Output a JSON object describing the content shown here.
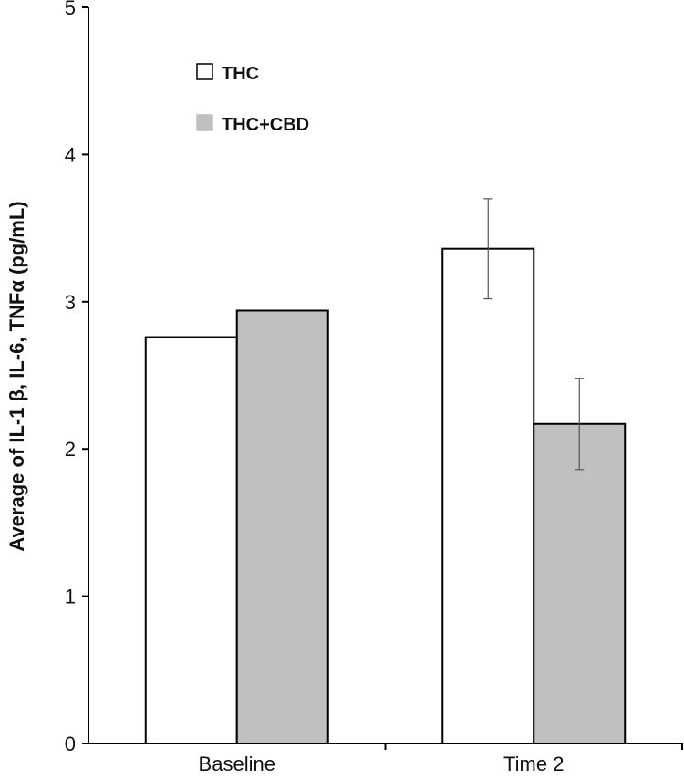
{
  "chart_data": {
    "type": "bar",
    "title": "",
    "xlabel": "",
    "ylabel": "Average of IL-1 β, IL-6, TNFα (pg/mL)",
    "categories": [
      "Baseline",
      "Time 2"
    ],
    "ylim": [
      0,
      5
    ],
    "yticks": [
      "0",
      "1",
      "2",
      "3",
      "4",
      "5"
    ],
    "grid": false,
    "legend_position": "top-left",
    "series": [
      {
        "name": "THC",
        "color": "#ffffff",
        "values": [
          2.76,
          3.36
        ],
        "errors": [
          null,
          0.34
        ]
      },
      {
        "name": "THC+CBD",
        "color": "#c0c0c0",
        "values": [
          2.94,
          2.17
        ],
        "errors": [
          null,
          0.31
        ]
      }
    ]
  }
}
